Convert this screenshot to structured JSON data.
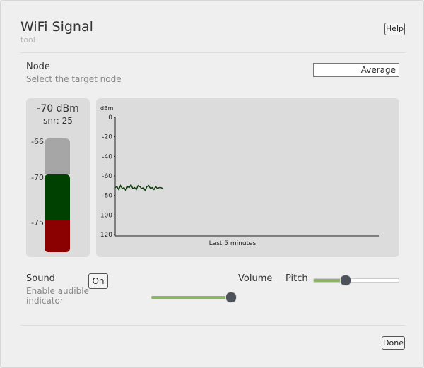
{
  "header": {
    "title": "WiFi Signal",
    "subtitle": "tool",
    "help": "Help"
  },
  "node": {
    "label": "Node",
    "description": "Select the target node",
    "selection": "Average"
  },
  "meter": {
    "reading": "-70 dBm",
    "snr": "snr: 25",
    "ticks": [
      -66,
      -70,
      -75
    ]
  },
  "chart_data": {
    "type": "line",
    "y_label": "dBm",
    "x_label": "Last 5 minutes",
    "x": [
      0,
      2,
      4,
      6,
      8,
      10,
      12,
      14,
      16,
      18,
      20,
      22,
      24,
      26,
      28,
      30,
      32,
      34,
      36,
      38,
      40,
      42,
      44,
      46,
      48,
      50,
      52,
      54
    ],
    "xlim": [
      0,
      300
    ],
    "series": [
      {
        "color": "#0f3d0f",
        "values": [
          -72,
          -71,
          -74,
          -70,
          -73,
          -72,
          -75,
          -71,
          -72,
          -69,
          -73,
          -72,
          -74,
          -70,
          -71,
          -73,
          -72,
          -75,
          -71,
          -70,
          -73,
          -72,
          -74,
          -71,
          -73,
          -72,
          -72,
          -73
        ]
      }
    ],
    "ylim": [
      -120,
      0
    ],
    "yticks": [
      0,
      -20,
      -40,
      -60,
      -80,
      {
        "value": -100,
        "label": "100"
      },
      {
        "value": -120,
        "label": "120"
      }
    ]
  },
  "sound": {
    "label": "Sound",
    "description_1": "Enable audible",
    "description_2": "indicator",
    "toggle": "On",
    "volume": "Volume",
    "pitch": "Pitch"
  },
  "footer": {
    "done": "Done"
  }
}
